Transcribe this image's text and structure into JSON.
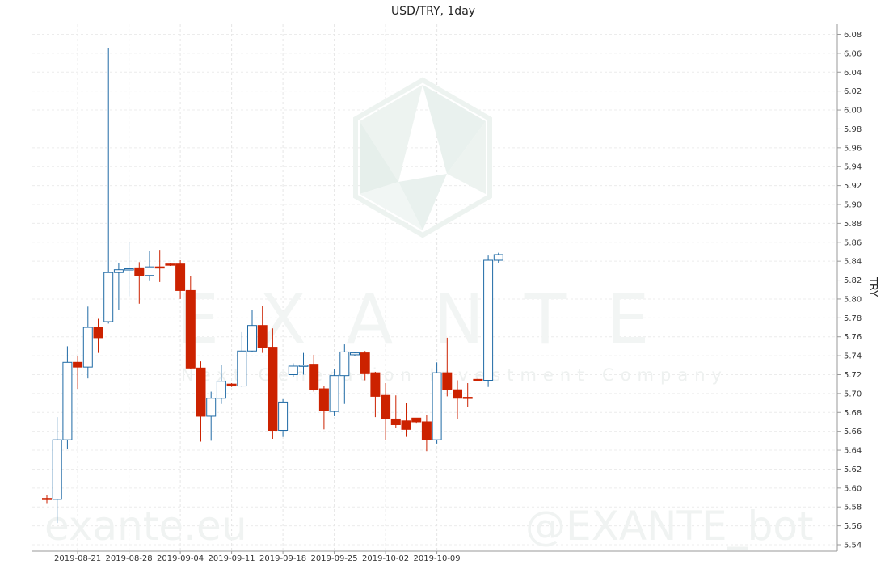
{
  "chart_data": {
    "type": "candlestick",
    "title": "USD/TRY, 1day",
    "ylabel": "TRY",
    "ylim": [
      5.54,
      6.09
    ],
    "y_ticks": [
      "5.54",
      "5.56",
      "5.58",
      "5.60",
      "5.62",
      "5.64",
      "5.66",
      "5.68",
      "5.70",
      "5.72",
      "5.74",
      "5.76",
      "5.78",
      "5.80",
      "5.82",
      "5.84",
      "5.86",
      "5.88",
      "5.90",
      "5.92",
      "5.94",
      "5.96",
      "5.98",
      "6.00",
      "6.02",
      "6.04",
      "6.06",
      "6.08"
    ],
    "x_ticks": [
      {
        "label": "2019-08-21",
        "index": 3
      },
      {
        "label": "2019-08-28",
        "index": 8
      },
      {
        "label": "2019-09-04",
        "index": 13
      },
      {
        "label": "2019-09-11",
        "index": 18
      },
      {
        "label": "2019-09-18",
        "index": 23
      },
      {
        "label": "2019-09-25",
        "index": 28
      },
      {
        "label": "2019-10-02",
        "index": 33
      },
      {
        "label": "2019-10-09",
        "index": 38
      }
    ],
    "grid": true,
    "colors": {
      "up": "#1f6aa5",
      "down": "#cc2200"
    },
    "candles": [
      {
        "date": "2019-08-16",
        "open": 5.589,
        "high": 5.593,
        "low": 5.584,
        "close": 5.588
      },
      {
        "date": "2019-08-19",
        "open": 5.588,
        "high": 5.675,
        "low": 5.563,
        "close": 5.651
      },
      {
        "date": "2019-08-20",
        "open": 5.651,
        "high": 5.75,
        "low": 5.641,
        "close": 5.733
      },
      {
        "date": "2019-08-21",
        "open": 5.733,
        "high": 5.74,
        "low": 5.705,
        "close": 5.728
      },
      {
        "date": "2019-08-22",
        "open": 5.728,
        "high": 5.792,
        "low": 5.716,
        "close": 5.77
      },
      {
        "date": "2019-08-23",
        "open": 5.77,
        "high": 5.779,
        "low": 5.743,
        "close": 5.759
      },
      {
        "date": "2019-08-26",
        "open": 5.776,
        "high": 6.065,
        "low": 5.774,
        "close": 5.828
      },
      {
        "date": "2019-08-27",
        "open": 5.828,
        "high": 5.838,
        "low": 5.788,
        "close": 5.831
      },
      {
        "date": "2019-08-28",
        "open": 5.831,
        "high": 5.86,
        "low": 5.803,
        "close": 5.832
      },
      {
        "date": "2019-08-29",
        "open": 5.833,
        "high": 5.839,
        "low": 5.795,
        "close": 5.825
      },
      {
        "date": "2019-08-30",
        "open": 5.825,
        "high": 5.851,
        "low": 5.819,
        "close": 5.834
      },
      {
        "date": "2019-09-02",
        "open": 5.834,
        "high": 5.852,
        "low": 5.818,
        "close": 5.833
      },
      {
        "date": "2019-09-03",
        "open": 5.837,
        "high": 5.838,
        "low": 5.835,
        "close": 5.836
      },
      {
        "date": "2019-09-04",
        "open": 5.837,
        "high": 5.841,
        "low": 5.8,
        "close": 5.809
      },
      {
        "date": "2019-09-05",
        "open": 5.809,
        "high": 5.824,
        "low": 5.726,
        "close": 5.727
      },
      {
        "date": "2019-09-06",
        "open": 5.727,
        "high": 5.734,
        "low": 5.649,
        "close": 5.676
      },
      {
        "date": "2019-09-09",
        "open": 5.676,
        "high": 5.702,
        "low": 5.65,
        "close": 5.695
      },
      {
        "date": "2019-09-10",
        "open": 5.695,
        "high": 5.73,
        "low": 5.689,
        "close": 5.713
      },
      {
        "date": "2019-09-11",
        "open": 5.71,
        "high": 5.711,
        "low": 5.707,
        "close": 5.708
      },
      {
        "date": "2019-09-12",
        "open": 5.708,
        "high": 5.765,
        "low": 5.707,
        "close": 5.745
      },
      {
        "date": "2019-09-13",
        "open": 5.745,
        "high": 5.788,
        "low": 5.744,
        "close": 5.772
      },
      {
        "date": "2019-09-16",
        "open": 5.772,
        "high": 5.793,
        "low": 5.743,
        "close": 5.749
      },
      {
        "date": "2019-09-17",
        "open": 5.749,
        "high": 5.769,
        "low": 5.652,
        "close": 5.661
      },
      {
        "date": "2019-09-18",
        "open": 5.661,
        "high": 5.694,
        "low": 5.654,
        "close": 5.691
      },
      {
        "date": "2019-09-19",
        "open": 5.72,
        "high": 5.732,
        "low": 5.717,
        "close": 5.729
      },
      {
        "date": "2019-09-20",
        "open": 5.729,
        "high": 5.743,
        "low": 5.72,
        "close": 5.73
      },
      {
        "date": "2019-09-23",
        "open": 5.731,
        "high": 5.741,
        "low": 5.702,
        "close": 5.704
      },
      {
        "date": "2019-09-24",
        "open": 5.705,
        "high": 5.708,
        "low": 5.662,
        "close": 5.682
      },
      {
        "date": "2019-09-25",
        "open": 5.681,
        "high": 5.726,
        "low": 5.676,
        "close": 5.719
      },
      {
        "date": "2019-09-26",
        "open": 5.719,
        "high": 5.752,
        "low": 5.689,
        "close": 5.744
      },
      {
        "date": "2019-09-27",
        "open": 5.741,
        "high": 5.744,
        "low": 5.74,
        "close": 5.743
      },
      {
        "date": "2019-09-30",
        "open": 5.743,
        "high": 5.745,
        "low": 5.714,
        "close": 5.721
      },
      {
        "date": "2019-10-01",
        "open": 5.722,
        "high": 5.723,
        "low": 5.675,
        "close": 5.697
      },
      {
        "date": "2019-10-02",
        "open": 5.698,
        "high": 5.711,
        "low": 5.651,
        "close": 5.673
      },
      {
        "date": "2019-10-03",
        "open": 5.673,
        "high": 5.698,
        "low": 5.664,
        "close": 5.667
      },
      {
        "date": "2019-10-04",
        "open": 5.671,
        "high": 5.69,
        "low": 5.654,
        "close": 5.662
      },
      {
        "date": "2019-10-07",
        "open": 5.674,
        "high": 5.674,
        "low": 5.669,
        "close": 5.67
      },
      {
        "date": "2019-10-08",
        "open": 5.67,
        "high": 5.677,
        "low": 5.639,
        "close": 5.651
      },
      {
        "date": "2019-10-09",
        "open": 5.651,
        "high": 5.733,
        "low": 5.647,
        "close": 5.722
      },
      {
        "date": "2019-10-10",
        "open": 5.722,
        "high": 5.759,
        "low": 5.697,
        "close": 5.704
      },
      {
        "date": "2019-10-11",
        "open": 5.704,
        "high": 5.714,
        "low": 5.673,
        "close": 5.695
      },
      {
        "date": "2019-10-14",
        "open": 5.696,
        "high": 5.711,
        "low": 5.686,
        "close": 5.695
      },
      {
        "date": "2019-10-15",
        "open": 5.715,
        "high": 5.716,
        "low": 5.714,
        "close": 5.714
      },
      {
        "date": "2019-10-16",
        "open": 5.714,
        "high": 5.846,
        "low": 5.707,
        "close": 5.841
      },
      {
        "date": "2019-10-17",
        "open": 5.841,
        "high": 5.849,
        "low": 5.838,
        "close": 5.847
      }
    ]
  },
  "watermark": {
    "brand": "EXANTE",
    "slogan": "Next Generation Investment Company",
    "site": "exante.eu",
    "bot": "@EXANTE_bot"
  }
}
